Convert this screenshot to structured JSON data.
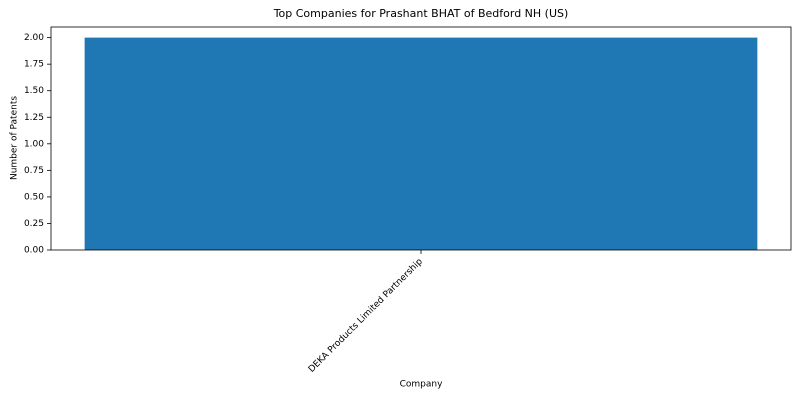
{
  "chart_data": {
    "type": "bar",
    "title": "Top Companies for Prashant BHAT of Bedford NH (US)",
    "x_label": "Company",
    "y_label": "Number of Patents",
    "categories": [
      "DEKA Products Limited Partnership"
    ],
    "values": [
      2
    ],
    "color": "#1f77b4",
    "ylim": [
      0,
      2.1
    ],
    "yticks": [
      {
        "value": 0,
        "label": "0.00"
      },
      {
        "value": 0.25,
        "label": "0.25"
      },
      {
        "value": 0.5,
        "label": "0.50"
      },
      {
        "value": 0.75,
        "label": "0.75"
      },
      {
        "value": 1,
        "label": "1.00"
      },
      {
        "value": 1.25,
        "label": "1.25"
      },
      {
        "value": 1.5,
        "label": "1.50"
      },
      {
        "value": 1.75,
        "label": "1.75"
      },
      {
        "value": 2,
        "label": "2.00"
      }
    ],
    "grid": false
  }
}
